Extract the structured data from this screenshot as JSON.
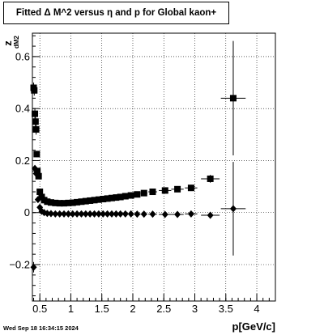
{
  "chart_data": {
    "type": "scatter",
    "title": "Fitted Δ M^2 versus η and p for Global kaon+",
    "xlabel": "p[GeV/c]",
    "ylabel": "z",
    "ylabel_sub": "dM2",
    "timestamp": "Wed Sep 18 16:34:15 2024",
    "xlim": [
      0.38,
      4.3
    ],
    "ylim": [
      -0.34,
      0.69
    ],
    "x_ticks": [
      0.5,
      1,
      1.5,
      2,
      2.5,
      3,
      3.5,
      4
    ],
    "x_tick_labels": [
      "0.5",
      "1",
      "1.5",
      "2",
      "2.5",
      "3",
      "3.5",
      "4"
    ],
    "y_ticks": [
      -0.2,
      0,
      0.2,
      0.4,
      0.6
    ],
    "y_tick_labels": [
      "−0.2",
      "0",
      "0.2",
      "0.4",
      "0.6"
    ],
    "grid": true,
    "series": [
      {
        "marker": "square",
        "points": [
          {
            "x": 0.4,
            "y": 0.48,
            "ex": 0.01,
            "ey": 0.02
          },
          {
            "x": 0.41,
            "y": 0.47,
            "ex": 0.01,
            "ey": 0.02
          },
          {
            "x": 0.42,
            "y": 0.38,
            "ex": 0.01,
            "ey": 0.02
          },
          {
            "x": 0.43,
            "y": 0.35,
            "ex": 0.01,
            "ey": 0.02
          },
          {
            "x": 0.44,
            "y": 0.32,
            "ex": 0.01,
            "ey": 0.02
          },
          {
            "x": 0.45,
            "y": 0.225,
            "ex": 0.01,
            "ey": 0.01
          },
          {
            "x": 0.46,
            "y": 0.16,
            "ex": 0.01,
            "ey": 0.01
          },
          {
            "x": 0.48,
            "y": 0.14,
            "ex": 0.01,
            "ey": 0.01
          },
          {
            "x": 0.5,
            "y": 0.08,
            "ex": 0.01,
            "ey": 0.01
          },
          {
            "x": 0.53,
            "y": 0.06,
            "ex": 0.02,
            "ey": 0.005
          },
          {
            "x": 0.57,
            "y": 0.048,
            "ex": 0.02,
            "ey": 0.005
          },
          {
            "x": 0.62,
            "y": 0.042,
            "ex": 0.025,
            "ey": 0.005
          },
          {
            "x": 0.68,
            "y": 0.039,
            "ex": 0.03,
            "ey": 0.005
          },
          {
            "x": 0.75,
            "y": 0.037,
            "ex": 0.035,
            "ey": 0.005
          },
          {
            "x": 0.82,
            "y": 0.036,
            "ex": 0.035,
            "ey": 0.005
          },
          {
            "x": 0.89,
            "y": 0.036,
            "ex": 0.035,
            "ey": 0.005
          },
          {
            "x": 0.96,
            "y": 0.037,
            "ex": 0.035,
            "ey": 0.005
          },
          {
            "x": 1.03,
            "y": 0.038,
            "ex": 0.035,
            "ey": 0.005
          },
          {
            "x": 1.1,
            "y": 0.04,
            "ex": 0.035,
            "ey": 0.005
          },
          {
            "x": 1.17,
            "y": 0.042,
            "ex": 0.035,
            "ey": 0.005
          },
          {
            "x": 1.24,
            "y": 0.044,
            "ex": 0.035,
            "ey": 0.005
          },
          {
            "x": 1.31,
            "y": 0.046,
            "ex": 0.035,
            "ey": 0.005
          },
          {
            "x": 1.38,
            "y": 0.048,
            "ex": 0.035,
            "ey": 0.005
          },
          {
            "x": 1.45,
            "y": 0.05,
            "ex": 0.035,
            "ey": 0.005
          },
          {
            "x": 1.52,
            "y": 0.052,
            "ex": 0.035,
            "ey": 0.005
          },
          {
            "x": 1.59,
            "y": 0.054,
            "ex": 0.035,
            "ey": 0.005
          },
          {
            "x": 1.66,
            "y": 0.056,
            "ex": 0.035,
            "ey": 0.005
          },
          {
            "x": 1.73,
            "y": 0.058,
            "ex": 0.035,
            "ey": 0.005
          },
          {
            "x": 1.8,
            "y": 0.06,
            "ex": 0.035,
            "ey": 0.005
          },
          {
            "x": 1.88,
            "y": 0.063,
            "ex": 0.04,
            "ey": 0.005
          },
          {
            "x": 1.97,
            "y": 0.066,
            "ex": 0.045,
            "ey": 0.005
          },
          {
            "x": 2.07,
            "y": 0.07,
            "ex": 0.05,
            "ey": 0.006
          },
          {
            "x": 2.18,
            "y": 0.075,
            "ex": 0.055,
            "ey": 0.006
          },
          {
            "x": 2.32,
            "y": 0.08,
            "ex": 0.07,
            "ey": 0.007
          },
          {
            "x": 2.52,
            "y": 0.085,
            "ex": 0.1,
            "ey": 0.008
          },
          {
            "x": 2.72,
            "y": 0.09,
            "ex": 0.1,
            "ey": 0.01
          },
          {
            "x": 2.94,
            "y": 0.095,
            "ex": 0.1,
            "ey": 0.012
          },
          {
            "x": 3.25,
            "y": 0.13,
            "ex": 0.15,
            "ey": 0.015
          },
          {
            "x": 3.62,
            "y": 0.44,
            "ex": 0.2,
            "ey": 0.22
          }
        ]
      },
      {
        "marker": "diamond",
        "points": [
          {
            "x": 0.4,
            "y": -0.21,
            "ex": 0.01,
            "ey": 0.02
          },
          {
            "x": 0.42,
            "y": 0.17,
            "ex": 0.01,
            "ey": 0.01
          },
          {
            "x": 0.44,
            "y": 0.15,
            "ex": 0.01,
            "ey": 0.01
          },
          {
            "x": 0.47,
            "y": 0.05,
            "ex": 0.01,
            "ey": 0.005
          },
          {
            "x": 0.5,
            "y": 0.02,
            "ex": 0.01,
            "ey": 0.005
          },
          {
            "x": 0.53,
            "y": 0.005,
            "ex": 0.02,
            "ey": 0.004
          },
          {
            "x": 0.57,
            "y": 0.0,
            "ex": 0.02,
            "ey": 0.004
          },
          {
            "x": 0.62,
            "y": -0.003,
            "ex": 0.025,
            "ey": 0.004
          },
          {
            "x": 0.68,
            "y": -0.004,
            "ex": 0.03,
            "ey": 0.004
          },
          {
            "x": 0.75,
            "y": -0.005,
            "ex": 0.035,
            "ey": 0.004
          },
          {
            "x": 0.82,
            "y": -0.005,
            "ex": 0.035,
            "ey": 0.004
          },
          {
            "x": 0.89,
            "y": -0.005,
            "ex": 0.035,
            "ey": 0.004
          },
          {
            "x": 0.96,
            "y": -0.005,
            "ex": 0.035,
            "ey": 0.004
          },
          {
            "x": 1.03,
            "y": -0.005,
            "ex": 0.035,
            "ey": 0.004
          },
          {
            "x": 1.1,
            "y": -0.005,
            "ex": 0.035,
            "ey": 0.004
          },
          {
            "x": 1.17,
            "y": -0.005,
            "ex": 0.035,
            "ey": 0.004
          },
          {
            "x": 1.24,
            "y": -0.005,
            "ex": 0.035,
            "ey": 0.004
          },
          {
            "x": 1.31,
            "y": -0.005,
            "ex": 0.035,
            "ey": 0.004
          },
          {
            "x": 1.38,
            "y": -0.005,
            "ex": 0.035,
            "ey": 0.004
          },
          {
            "x": 1.45,
            "y": -0.005,
            "ex": 0.035,
            "ey": 0.004
          },
          {
            "x": 1.52,
            "y": -0.005,
            "ex": 0.035,
            "ey": 0.004
          },
          {
            "x": 1.59,
            "y": -0.005,
            "ex": 0.035,
            "ey": 0.004
          },
          {
            "x": 1.66,
            "y": -0.005,
            "ex": 0.035,
            "ey": 0.004
          },
          {
            "x": 1.73,
            "y": -0.005,
            "ex": 0.035,
            "ey": 0.004
          },
          {
            "x": 1.8,
            "y": -0.005,
            "ex": 0.035,
            "ey": 0.004
          },
          {
            "x": 1.88,
            "y": -0.005,
            "ex": 0.04,
            "ey": 0.004
          },
          {
            "x": 1.97,
            "y": -0.005,
            "ex": 0.045,
            "ey": 0.004
          },
          {
            "x": 2.07,
            "y": -0.006,
            "ex": 0.05,
            "ey": 0.005
          },
          {
            "x": 2.18,
            "y": -0.006,
            "ex": 0.055,
            "ey": 0.005
          },
          {
            "x": 2.32,
            "y": -0.006,
            "ex": 0.07,
            "ey": 0.006
          },
          {
            "x": 2.52,
            "y": -0.007,
            "ex": 0.1,
            "ey": 0.007
          },
          {
            "x": 2.72,
            "y": -0.007,
            "ex": 0.1,
            "ey": 0.008
          },
          {
            "x": 2.94,
            "y": -0.005,
            "ex": 0.1,
            "ey": 0.01
          },
          {
            "x": 3.25,
            "y": -0.01,
            "ex": 0.15,
            "ey": 0.012
          },
          {
            "x": 3.62,
            "y": 0.015,
            "ex": 0.2,
            "ey": 0.18
          }
        ]
      }
    ]
  }
}
